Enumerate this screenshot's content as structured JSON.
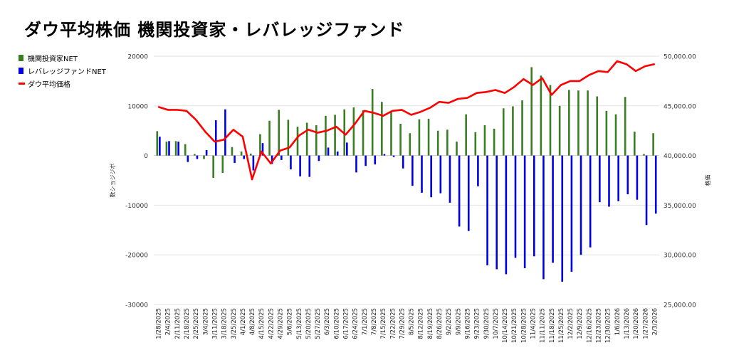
{
  "title": "ダウ平均株価 機関投資家・レバレッジファンド",
  "colors": {
    "institutional": "#3a7d22",
    "leveraged": "#0000e6",
    "dow": "#ff0000",
    "grid": "#e2e2e2"
  },
  "chart_data": {
    "type": "bar",
    "title": "ダウ平均株価 機関投資家・レバレッジファンド",
    "legend_position": "left",
    "grid": true,
    "categories": [
      "1/28/2025",
      "2/4/2025",
      "2/11/2025",
      "2/18/2025",
      "2/25/2025",
      "3/4/2025",
      "3/11/2025",
      "3/18/2025",
      "3/25/2025",
      "4/1/2025",
      "4/8/2025",
      "4/15/2025",
      "4/22/2025",
      "4/29/2025",
      "5/6/2025",
      "5/13/2025",
      "5/20/2025",
      "5/27/2025",
      "6/3/2025",
      "6/10/2025",
      "6/17/2025",
      "6/24/2025",
      "7/1/2025",
      "7/8/2025",
      "7/15/2025",
      "7/22/2025",
      "7/29/2025",
      "8/5/2025",
      "8/12/2025",
      "8/19/2025",
      "8/26/2025",
      "9/2/2025",
      "9/9/2025",
      "9/16/2025",
      "9/23/2025",
      "9/30/2025",
      "10/7/2025",
      "10/14/2025",
      "10/21/2025",
      "10/28/2025",
      "11/4/2025",
      "11/11/2025",
      "11/18/2025",
      "11/25/2025",
      "12/2/2025",
      "12/9/2025",
      "12/16/2025",
      "12/23/2025",
      "12/30/2025",
      "1/6/2026",
      "1/13/2026",
      "1/20/2026",
      "1/27/2026",
      "2/3/2026"
    ],
    "x_tick_labels": [
      "1/28/2025",
      "2/4/2025",
      "2/11/2025",
      "2/18/2025",
      "2/25/2025",
      "3/4/2025",
      "3/11/2025",
      "3/18/2025",
      "3/25/2025",
      "4/1/2025",
      "4/8/2025",
      "4/15/2025",
      "4/22/2025",
      "4/29/2025",
      "5/6/2025",
      "5/13/2025",
      "5/20/2025",
      "5/27/2025",
      "6/3/2025",
      "6/10/2025",
      "6/17/2025",
      "6/24/2025",
      "7/1/2025",
      "7/8/2025",
      "7/15/2025",
      "7/22/2025",
      "7/29/2025",
      "8/5/2025",
      "8/12/2025",
      "8/19/2025",
      "8/26/2025",
      "9/2/2025",
      "9/9/2025",
      "9/16/2025",
      "9/23/2025",
      "9/30/2025",
      "10/7/2025",
      "10/14/2025",
      "10/21/2025",
      "10/28/2025",
      "11/4/2025",
      "11/11/2025",
      "11/18/2025",
      "11/25/2025",
      "12/2/2025",
      "12/9/2025",
      "12/16/2025",
      "12/23/2025",
      "12/30/2025",
      "1/6/2026",
      "1/13/2026",
      "1/20/2026",
      "1/27/2026",
      "2/3/2026"
    ],
    "ylabel_left": "数ショジジボ",
    "ylabel_right": "格価",
    "ylim_left": [
      -30000,
      20000
    ],
    "ylim_right": [
      25000,
      50000
    ],
    "yticks_left": [
      "20000",
      "10000",
      "0",
      "-10000",
      "-20000",
      "-30000"
    ],
    "yticks_right": [
      "50,000.00",
      "45,000.00",
      "40,000.00",
      "35,000.00",
      "30,000.00",
      "25,000.00"
    ],
    "series": [
      {
        "name": "機関投資家NET",
        "type": "bar",
        "values": [
          4900,
          2800,
          2900,
          2300,
          300,
          -700,
          -4500,
          -3500,
          1700,
          800,
          400,
          4300,
          7000,
          9200,
          7200,
          5800,
          6600,
          6100,
          8000,
          8200,
          9300,
          9700,
          9100,
          13400,
          10800,
          9000,
          6400,
          4500,
          7300,
          7400,
          5000,
          5200,
          2800,
          8300,
          4700,
          6100,
          5400,
          9500,
          9900,
          11100,
          17800,
          16100,
          14200,
          10000,
          13200,
          13100,
          13100,
          11900,
          9000,
          8300,
          11800,
          4800,
          300,
          4500
        ],
        "values_note": ""
      },
      {
        "name": "レバレッジファンドNET",
        "type": "bar",
        "values": [
          3800,
          2900,
          2800,
          -1300,
          -700,
          1100,
          7100,
          9300,
          -1500,
          -700,
          -3000,
          2500,
          -1700,
          -900,
          -2800,
          -4200,
          -4300,
          -1100,
          1600,
          800,
          2600,
          -3400,
          -2100,
          -1800,
          300,
          -300,
          -2600,
          -6100,
          -7500,
          -8400,
          -7600,
          -9500,
          -14300,
          -15200,
          -6200,
          -22100,
          -22900,
          -23900,
          -20600,
          -22700,
          -20300,
          -24900,
          -21600,
          -25400,
          -23400,
          -20000,
          -18500,
          -9400,
          -10300,
          -9200,
          -7800,
          -8900,
          -14000,
          -11700
        ]
      },
      {
        "name": "ダウ平均価格",
        "type": "line",
        "axis": "right",
        "values": [
          44900,
          44600,
          44600,
          44500,
          43600,
          42400,
          41400,
          41600,
          42600,
          41900,
          37600,
          40400,
          39200,
          40500,
          40800,
          42000,
          42600,
          42300,
          42500,
          42900,
          42100,
          43200,
          44500,
          44300,
          44000,
          44500,
          44600,
          44100,
          44400,
          44800,
          45400,
          45300,
          45700,
          45800,
          46300,
          46400,
          46600,
          46300,
          46900,
          47700,
          47100,
          47800,
          46100,
          47100,
          47500,
          47500,
          48100,
          48500,
          48400,
          49500,
          49200,
          48500,
          49000,
          49200
        ]
      }
    ]
  }
}
